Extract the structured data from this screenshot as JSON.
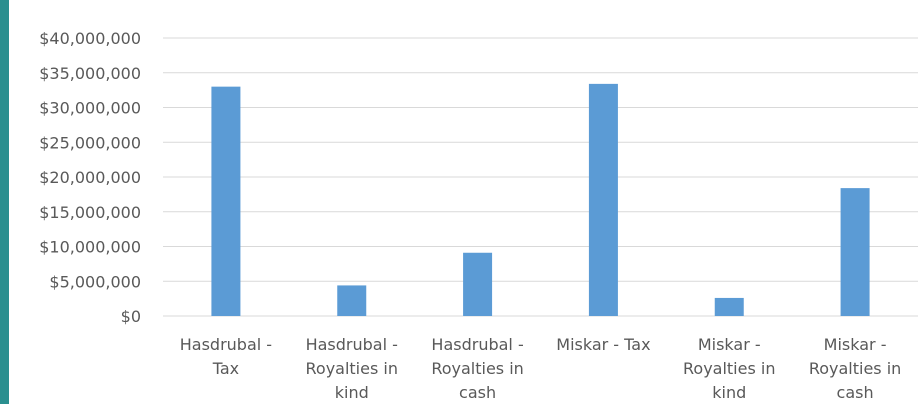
{
  "chart_data": {
    "type": "bar",
    "title": "",
    "xlabel": "",
    "ylabel": "",
    "ylim": [
      0,
      40000000
    ],
    "y_tick_step": 5000000,
    "y_tick_labels": [
      "$0",
      "$5,000,000",
      "$10,000,000",
      "$15,000,000",
      "$20,000,000",
      "$25,000,000",
      "$30,000,000",
      "$35,000,000",
      "$40,000,000"
    ],
    "grid": true,
    "legend": "none",
    "categories": [
      [
        "Hasdrubal -",
        "Tax"
      ],
      [
        "Hasdrubal -",
        "Royalties in",
        "kind"
      ],
      [
        "Hasdrubal -",
        "Royalties in",
        "cash"
      ],
      [
        "Miskar - Tax"
      ],
      [
        "Miskar -",
        "Royalties in",
        "kind"
      ],
      [
        "Miskar -",
        "Royalties in",
        "cash"
      ]
    ],
    "values": [
      33000000,
      4400000,
      9100000,
      33400000,
      2600000,
      18400000
    ],
    "colors": {
      "bar": "#5b9bd5",
      "grid": "#d9d9d9",
      "text": "#595959",
      "accent": "#2a8f8f"
    }
  }
}
